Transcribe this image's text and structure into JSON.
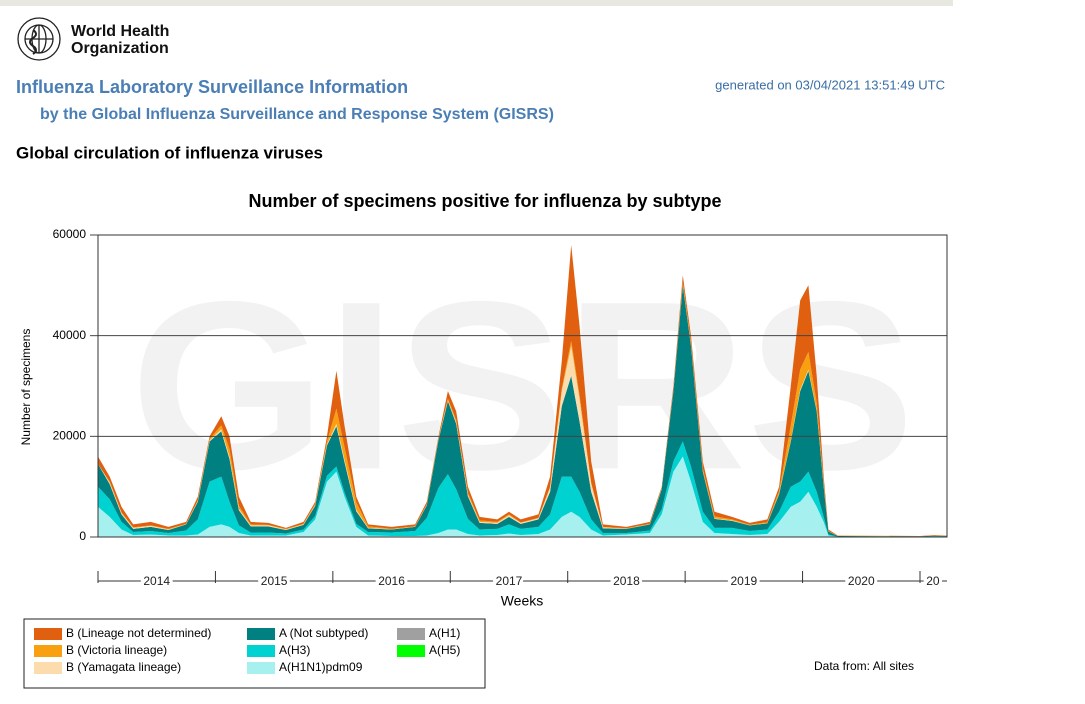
{
  "header": {
    "org_line1": "World Health",
    "org_line2": "Organization",
    "title": "Influenza Laboratory Surveillance Information",
    "subtitle": "by the Global Influenza Surveillance and Response System (GISRS)",
    "generated": "generated on 03/04/2021 13:51:49 UTC",
    "section": "Global circulation of influenza viruses"
  },
  "chart_data": {
    "type": "stacked_area",
    "title": "Number of specimens positive for influenza by subtype",
    "watermark": "GISRS",
    "x_label": "Weeks",
    "y_label": "Number of specimens",
    "source_note": "Data from: All sites",
    "xlim": [
      2014,
      2021.23
    ],
    "xticks": [
      2014,
      2015,
      2016,
      2017,
      2018,
      2019,
      2020,
      2021
    ],
    "year_labels": [
      {
        "value": 2014.5,
        "label": "2014"
      },
      {
        "value": 2015.5,
        "label": "2015"
      },
      {
        "value": 2016.5,
        "label": "2016"
      },
      {
        "value": 2017.5,
        "label": "2017"
      },
      {
        "value": 2018.5,
        "label": "2018"
      },
      {
        "value": 2019.5,
        "label": "2019"
      },
      {
        "value": 2020.5,
        "label": "2020"
      },
      {
        "value": 2021.11,
        "label": "20"
      }
    ],
    "ylim": [
      0,
      60000
    ],
    "yticks": [
      0,
      20000,
      40000,
      60000
    ],
    "grid": true,
    "x": [
      2014.0,
      2014.1,
      2014.2,
      2014.3,
      2014.45,
      2014.6,
      2014.75,
      2014.85,
      2014.95,
      2015.05,
      2015.12,
      2015.2,
      2015.3,
      2015.45,
      2015.6,
      2015.75,
      2015.85,
      2015.95,
      2016.03,
      2016.1,
      2016.2,
      2016.3,
      2016.5,
      2016.7,
      2016.8,
      2016.9,
      2016.98,
      2017.05,
      2017.15,
      2017.25,
      2017.4,
      2017.5,
      2017.6,
      2017.75,
      2017.85,
      2017.95,
      2018.03,
      2018.1,
      2018.2,
      2018.3,
      2018.5,
      2018.7,
      2018.8,
      2018.9,
      2018.98,
      2019.05,
      2019.15,
      2019.25,
      2019.4,
      2019.55,
      2019.7,
      2019.8,
      2019.9,
      2019.98,
      2020.05,
      2020.12,
      2020.18,
      2020.22,
      2020.3,
      2021.0,
      2021.12,
      2021.23
    ],
    "series": [
      {
        "name": "A(H1N1)pdm09",
        "color": "#a6f0f0",
        "values": [
          6000,
          4000,
          1500,
          400,
          500,
          300,
          300,
          500,
          2000,
          2500,
          2000,
          800,
          300,
          300,
          300,
          1000,
          3500,
          11000,
          13000,
          8000,
          2000,
          300,
          200,
          200,
          300,
          800,
          1500,
          1500,
          600,
          300,
          400,
          700,
          400,
          600,
          1500,
          4000,
          5000,
          4000,
          1500,
          300,
          500,
          800,
          4500,
          13000,
          16000,
          11000,
          3000,
          800,
          600,
          400,
          600,
          3000,
          6000,
          7000,
          9000,
          6000,
          3000,
          300,
          50,
          30,
          50,
          40
        ]
      },
      {
        "name": "A(H1)",
        "color": "#a0a0a0",
        "values": [
          0,
          0,
          0,
          0,
          0,
          0,
          0,
          0,
          0,
          0,
          0,
          0,
          0,
          0,
          0,
          0,
          0,
          0,
          0,
          0,
          0,
          0,
          0,
          0,
          0,
          0,
          0,
          0,
          0,
          0,
          0,
          0,
          0,
          0,
          0,
          0,
          0,
          0,
          0,
          0,
          0,
          0,
          0,
          0,
          0,
          0,
          0,
          0,
          0,
          0,
          0,
          0,
          0,
          0,
          0,
          0,
          0,
          0,
          0,
          0,
          0,
          0
        ]
      },
      {
        "name": "A(H3)",
        "color": "#00d2d2",
        "values": [
          4000,
          3500,
          1500,
          600,
          700,
          500,
          1000,
          3000,
          9000,
          9500,
          5000,
          1500,
          600,
          600,
          400,
          500,
          700,
          1200,
          1000,
          800,
          600,
          700,
          700,
          1000,
          3500,
          9000,
          11000,
          8000,
          3000,
          1200,
          1200,
          1800,
          1200,
          1400,
          3000,
          8000,
          7000,
          5000,
          2000,
          500,
          300,
          500,
          1000,
          2000,
          3000,
          3000,
          2000,
          1000,
          1200,
          800,
          900,
          2000,
          4000,
          4000,
          4000,
          3000,
          1000,
          200,
          50,
          50,
          100,
          80
        ]
      },
      {
        "name": "A(H5)",
        "color": "#00ff00",
        "values": [
          0,
          0,
          0,
          0,
          0,
          0,
          0,
          0,
          0,
          0,
          0,
          0,
          0,
          0,
          0,
          0,
          0,
          0,
          0,
          0,
          0,
          0,
          0,
          0,
          0,
          0,
          0,
          0,
          0,
          0,
          0,
          0,
          0,
          0,
          0,
          0,
          0,
          0,
          0,
          0,
          0,
          0,
          0,
          0,
          0,
          0,
          0,
          0,
          0,
          0,
          0,
          0,
          0,
          0,
          0,
          0,
          0,
          0,
          0,
          0,
          0,
          0
        ]
      },
      {
        "name": "A (Not subtyped)",
        "color": "#008080",
        "values": [
          4500,
          3000,
          1500,
          600,
          800,
          600,
          1200,
          3500,
          8000,
          9000,
          8500,
          3000,
          1200,
          1200,
          700,
          900,
          2000,
          6000,
          8000,
          6000,
          2500,
          700,
          600,
          800,
          2500,
          9500,
          14500,
          13000,
          4500,
          1300,
          1000,
          1500,
          1000,
          1500,
          4500,
          14000,
          20000,
          14000,
          5500,
          900,
          800,
          1200,
          4000,
          14000,
          31000,
          24000,
          8000,
          1800,
          1400,
          1100,
          1200,
          3500,
          9000,
          18000,
          20000,
          16000,
          6000,
          600,
          100,
          60,
          100,
          80
        ]
      },
      {
        "name": "B (Yamagata lineage)",
        "color": "#fcdcac",
        "values": [
          0,
          300,
          200,
          200,
          200,
          100,
          50,
          100,
          200,
          400,
          500,
          300,
          200,
          200,
          100,
          100,
          100,
          200,
          500,
          500,
          300,
          100,
          50,
          50,
          50,
          100,
          200,
          300,
          300,
          200,
          200,
          300,
          200,
          200,
          800,
          3000,
          6000,
          4500,
          1500,
          200,
          50,
          50,
          50,
          100,
          100,
          100,
          100,
          100,
          100,
          50,
          50,
          100,
          200,
          300,
          300,
          200,
          100,
          0,
          0,
          0,
          0,
          0
        ]
      },
      {
        "name": "B (Victoria lineage)",
        "color": "#f8a010",
        "values": [
          0,
          200,
          200,
          100,
          100,
          100,
          100,
          200,
          300,
          800,
          1500,
          600,
          200,
          100,
          100,
          150,
          300,
          600,
          3000,
          2500,
          1500,
          300,
          100,
          100,
          150,
          200,
          300,
          400,
          400,
          300,
          200,
          200,
          100,
          100,
          200,
          500,
          1000,
          700,
          300,
          100,
          100,
          100,
          100,
          200,
          500,
          500,
          500,
          400,
          200,
          100,
          200,
          500,
          3000,
          4000,
          3500,
          1500,
          500,
          100,
          30,
          20,
          50,
          40
        ]
      },
      {
        "name": "B (Lineage not determined)",
        "color": "#e06010",
        "values": [
          1500,
          1000,
          1100,
          600,
          700,
          400,
          350,
          700,
          500,
          1800,
          2500,
          1800,
          500,
          400,
          200,
          350,
          400,
          1000,
          7500,
          4200,
          1100,
          400,
          350,
          350,
          500,
          400,
          1500,
          1800,
          1200,
          700,
          500,
          500,
          600,
          700,
          2000,
          5500,
          19000,
          13800,
          4200,
          500,
          250,
          350,
          350,
          700,
          1400,
          1400,
          1400,
          900,
          500,
          350,
          550,
          900,
          7800,
          13700,
          13200,
          5300,
          1400,
          300,
          70,
          40,
          100,
          60
        ]
      }
    ]
  }
}
